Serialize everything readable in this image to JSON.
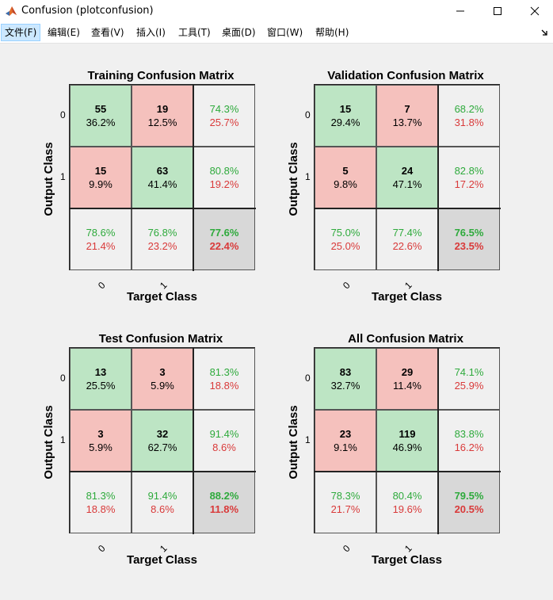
{
  "window": {
    "title": "Confusion (plotconfusion)",
    "controls": [
      "minimize",
      "maximize",
      "close"
    ]
  },
  "menu": [
    {
      "label": "文件(F)",
      "active": true
    },
    {
      "label": "编辑(E)"
    },
    {
      "label": "查看(V)"
    },
    {
      "label": "插入(I)"
    },
    {
      "label": "工具(T)"
    },
    {
      "label": "桌面(D)"
    },
    {
      "label": "窗口(W)"
    },
    {
      "label": "帮助(H)"
    }
  ],
  "colors": {
    "correct_bg": "#bde5c4",
    "wrong_bg": "#f5c1bd",
    "summary_bg": "#f0f0f0",
    "total_bg": "#d8d8d8",
    "good_text": "#2eaa3c",
    "bad_text": "#d93a3a"
  },
  "chart_data": [
    {
      "type": "table",
      "title": "Training Confusion Matrix",
      "xlabel": "Target Class",
      "ylabel": "Output Class",
      "classes": [
        "0",
        "1"
      ],
      "cells": [
        [
          {
            "count": "55",
            "pct": "36.2%"
          },
          {
            "count": "19",
            "pct": "12.5%"
          }
        ],
        [
          {
            "count": "15",
            "pct": "9.9%"
          },
          {
            "count": "63",
            "pct": "41.4%"
          }
        ]
      ],
      "row_summary": [
        [
          "74.3%",
          "25.7%"
        ],
        [
          "80.8%",
          "19.2%"
        ]
      ],
      "col_summary": [
        [
          "78.6%",
          "21.4%"
        ],
        [
          "76.8%",
          "23.2%"
        ]
      ],
      "overall": [
        "77.6%",
        "22.4%"
      ]
    },
    {
      "type": "table",
      "title": "Validation Confusion Matrix",
      "xlabel": "Target Class",
      "ylabel": "Output Class",
      "classes": [
        "0",
        "1"
      ],
      "cells": [
        [
          {
            "count": "15",
            "pct": "29.4%"
          },
          {
            "count": "7",
            "pct": "13.7%"
          }
        ],
        [
          {
            "count": "5",
            "pct": "9.8%"
          },
          {
            "count": "24",
            "pct": "47.1%"
          }
        ]
      ],
      "row_summary": [
        [
          "68.2%",
          "31.8%"
        ],
        [
          "82.8%",
          "17.2%"
        ]
      ],
      "col_summary": [
        [
          "75.0%",
          "25.0%"
        ],
        [
          "77.4%",
          "22.6%"
        ]
      ],
      "overall": [
        "76.5%",
        "23.5%"
      ]
    },
    {
      "type": "table",
      "title": "Test Confusion Matrix",
      "xlabel": "Target Class",
      "ylabel": "Output Class",
      "classes": [
        "0",
        "1"
      ],
      "cells": [
        [
          {
            "count": "13",
            "pct": "25.5%"
          },
          {
            "count": "3",
            "pct": "5.9%"
          }
        ],
        [
          {
            "count": "3",
            "pct": "5.9%"
          },
          {
            "count": "32",
            "pct": "62.7%"
          }
        ]
      ],
      "row_summary": [
        [
          "81.3%",
          "18.8%"
        ],
        [
          "91.4%",
          "8.6%"
        ]
      ],
      "col_summary": [
        [
          "81.3%",
          "18.8%"
        ],
        [
          "91.4%",
          "8.6%"
        ]
      ],
      "overall": [
        "88.2%",
        "11.8%"
      ]
    },
    {
      "type": "table",
      "title": "All Confusion Matrix",
      "xlabel": "Target Class",
      "ylabel": "Output Class",
      "classes": [
        "0",
        "1"
      ],
      "cells": [
        [
          {
            "count": "83",
            "pct": "32.7%"
          },
          {
            "count": "29",
            "pct": "11.4%"
          }
        ],
        [
          {
            "count": "23",
            "pct": "9.1%"
          },
          {
            "count": "119",
            "pct": "46.9%"
          }
        ]
      ],
      "row_summary": [
        [
          "74.1%",
          "25.9%"
        ],
        [
          "83.8%",
          "16.2%"
        ]
      ],
      "col_summary": [
        [
          "78.3%",
          "21.7%"
        ],
        [
          "80.4%",
          "19.6%"
        ]
      ],
      "overall": [
        "79.5%",
        "20.5%"
      ]
    }
  ]
}
